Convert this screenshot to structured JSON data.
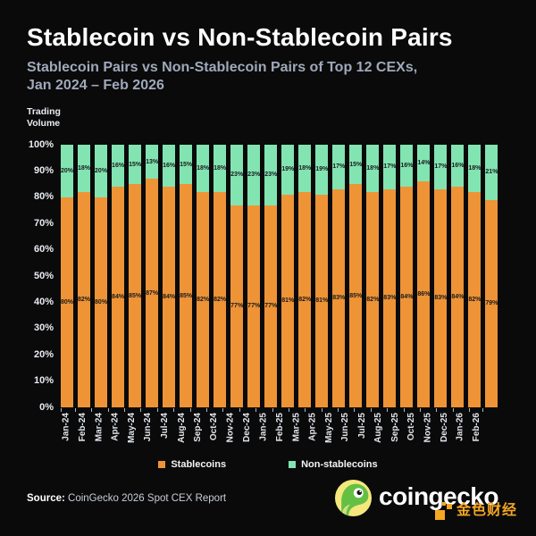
{
  "header": {
    "title": "Stablecoin vs Non-Stablecoin Pairs",
    "subtitle_line1": "Stablecoin Pairs vs Non-Stablecoin Pairs of Top 12 CEXs,",
    "subtitle_line2": "Jan 2024 – Feb 2026"
  },
  "chart_data": {
    "type": "bar",
    "stacked": true,
    "title": "Stablecoin vs Non-Stablecoin Pairs",
    "subtitle": "Stablecoin Pairs vs Non-Stablecoin Pairs of Top 12 CEXs, Jan 2024 – Feb 2026",
    "ylabel_lines": [
      "Trading",
      "Volume"
    ],
    "unit": "%",
    "ylim": [
      0,
      100
    ],
    "grid": false,
    "legend_position": "bottom",
    "y_ticks": [
      "100%",
      "90%",
      "80%",
      "70%",
      "60%",
      "50%",
      "40%",
      "30%",
      "20%",
      "10%",
      "0%"
    ],
    "categories": [
      "Jan-24",
      "Feb-24",
      "Mar-24",
      "Apr-24",
      "May-24",
      "Jun-24",
      "Jul-24",
      "Aug-24",
      "Sep-24",
      "Oct-24",
      "Nov-24",
      "Dec-24",
      "Jan-25",
      "Feb-25",
      "Mar-25",
      "Apr-25",
      "May-25",
      "Jun-25",
      "Jul-25",
      "Aug-25",
      "Sep-25",
      "Oct-25",
      "Nov-25",
      "Dec-25",
      "Jan-26",
      "Feb-26"
    ],
    "series": [
      {
        "name": "Stablecoins",
        "color": "#EE9336",
        "values": [
          80,
          82,
          80,
          84,
          85,
          87,
          84,
          85,
          82,
          82,
          77,
          77,
          77,
          81,
          82,
          81,
          83,
          85,
          82,
          83,
          84,
          86,
          83,
          84,
          82,
          79
        ]
      },
      {
        "name": "Non-stablecoins",
        "color": "#82E4B1",
        "values": [
          20,
          18,
          20,
          16,
          15,
          13,
          16,
          15,
          18,
          18,
          23,
          23,
          23,
          19,
          18,
          19,
          17,
          15,
          18,
          17,
          16,
          14,
          17,
          16,
          18,
          21
        ]
      }
    ]
  },
  "footer": {
    "source_label": "Source:",
    "source_text": "CoinGecko 2026 Spot CEX Report",
    "brand_wordmark": "coingecko",
    "brand_cn": "金色财经"
  },
  "colors": {
    "background": "#0A0A0B",
    "stablecoin_orange": "#EE9336",
    "non_stablecoin_mint": "#82E4B1",
    "subtitle_text": "#9FA9BA",
    "brand_gold": "#F5A623"
  }
}
